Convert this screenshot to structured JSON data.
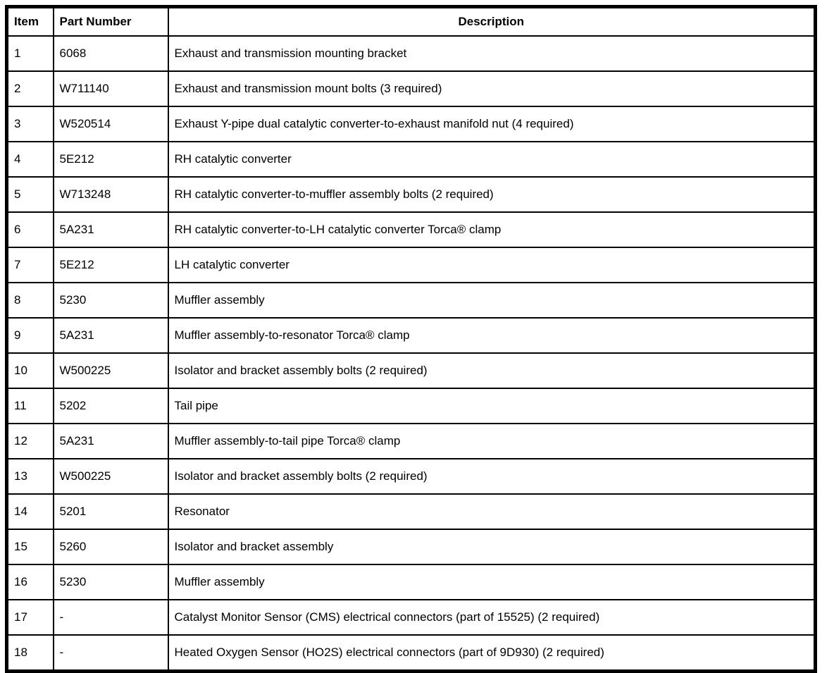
{
  "colors": {
    "border": "#000000",
    "background": "#ffffff",
    "text": "#000000"
  },
  "table": {
    "columns": [
      "Item",
      "Part Number",
      "Description"
    ],
    "rows": [
      {
        "item": "1",
        "part": "6068",
        "description": "Exhaust and transmission mounting bracket"
      },
      {
        "item": "2",
        "part": "W711140",
        "description": "Exhaust and transmission mount bolts (3 required)"
      },
      {
        "item": "3",
        "part": "W520514",
        "description": "Exhaust Y-pipe dual catalytic converter-to-exhaust manifold nut (4 required)"
      },
      {
        "item": "4",
        "part": "5E212",
        "description": "RH catalytic converter"
      },
      {
        "item": "5",
        "part": "W713248",
        "description": "RH catalytic converter-to-muffler assembly bolts (2 required)"
      },
      {
        "item": "6",
        "part": "5A231",
        "description": "RH catalytic converter-to-LH catalytic converter Torca® clamp"
      },
      {
        "item": "7",
        "part": "5E212",
        "description": "LH catalytic converter"
      },
      {
        "item": "8",
        "part": "5230",
        "description": "Muffler assembly"
      },
      {
        "item": "9",
        "part": "5A231",
        "description": "Muffler assembly-to-resonator Torca® clamp"
      },
      {
        "item": "10",
        "part": "W500225",
        "description": "Isolator and bracket assembly bolts (2 required)"
      },
      {
        "item": "11",
        "part": "5202",
        "description": "Tail pipe"
      },
      {
        "item": "12",
        "part": "5A231",
        "description": "Muffler assembly-to-tail pipe Torca® clamp"
      },
      {
        "item": "13",
        "part": "W500225",
        "description": "Isolator and bracket assembly bolts (2 required)"
      },
      {
        "item": "14",
        "part": "5201",
        "description": "Resonator"
      },
      {
        "item": "15",
        "part": "5260",
        "description": "Isolator and bracket assembly"
      },
      {
        "item": "16",
        "part": "5230",
        "description": "Muffler assembly"
      },
      {
        "item": "17",
        "part": "-",
        "description": "Catalyst Monitor Sensor (CMS) electrical connectors (part of 15525) (2 required)"
      },
      {
        "item": "18",
        "part": "-",
        "description": "Heated Oxygen Sensor (HO2S) electrical connectors (part of 9D930) (2 required)"
      }
    ]
  }
}
